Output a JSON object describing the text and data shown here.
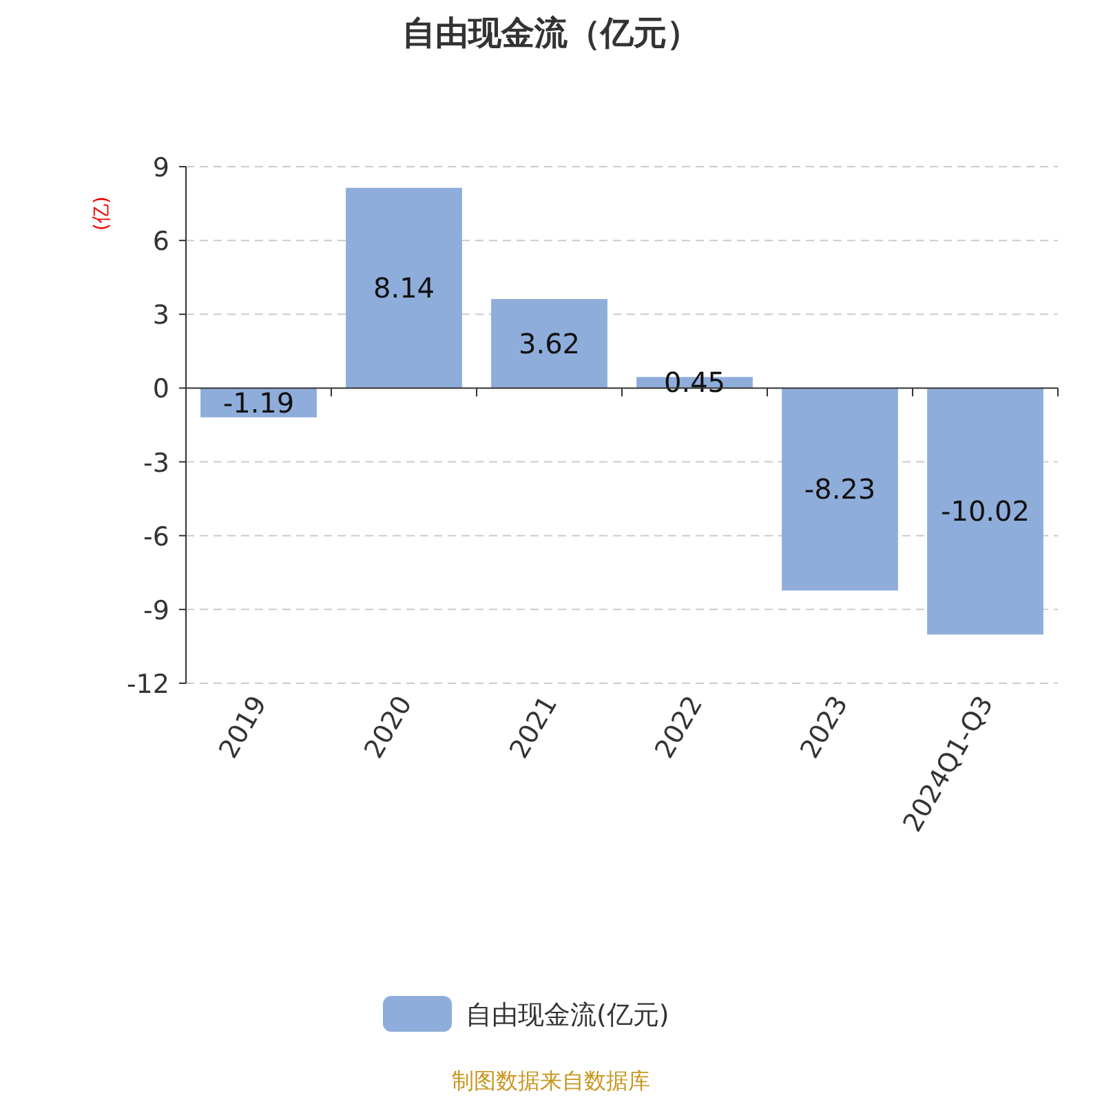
{
  "chart_data": {
    "type": "bar",
    "title": "自由现金流（亿元）",
    "ylabel": "(亿)",
    "categories": [
      "2019",
      "2020",
      "2021",
      "2022",
      "2023",
      "2024Q1-Q3"
    ],
    "series": [
      {
        "name": "自由现金流(亿元)",
        "color": "#8eaddb",
        "values": [
          -1.19,
          8.14,
          3.62,
          0.45,
          -8.23,
          -10.02
        ]
      }
    ],
    "ylim": [
      -12,
      9
    ],
    "yticks": [
      -12,
      -9,
      -6,
      -3,
      0,
      3,
      6,
      9
    ],
    "grid": "y",
    "data_labels": true,
    "legend": "bottom",
    "annotations": [
      "制图数据来自数据库"
    ]
  }
}
